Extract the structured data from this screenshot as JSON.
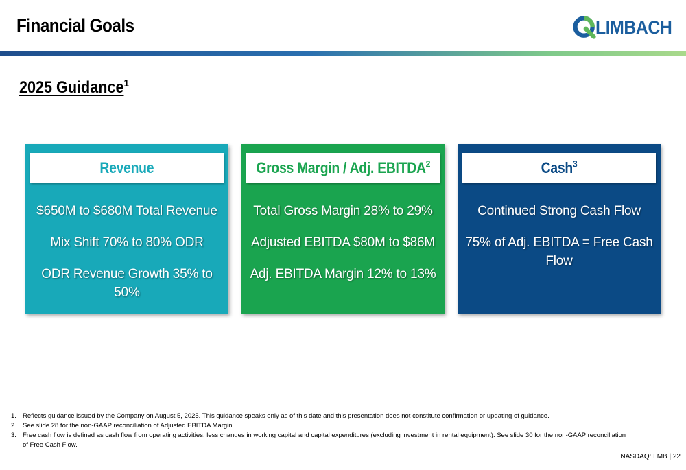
{
  "header": {
    "title": "Financial Goals",
    "logo_text": "LIMBACH",
    "logo_icon": "limbach-q-logo-icon",
    "bar_colors": [
      "#1f4e8c",
      "#2a6fb0",
      "#7ec98a",
      "#a9d98b"
    ]
  },
  "section": {
    "title": "2025 Guidance",
    "footnote_ref": "1"
  },
  "cards": [
    {
      "title": "Revenue",
      "footnote_ref": "",
      "color": "#18a9b9",
      "lines": [
        "$650M to $680M Total Revenue",
        "Mix Shift 70% to 80% ODR",
        "ODR Revenue Growth 35% to 50%"
      ]
    },
    {
      "title": "Gross Margin / Adj. EBITDA",
      "footnote_ref": "2",
      "color": "#1aa44f",
      "lines": [
        "Total Gross Margin 28% to 29%",
        "Adjusted EBITDA $80M to $86M",
        "Adj. EBITDA Margin 12% to 13%"
      ]
    },
    {
      "title": "Cash",
      "footnote_ref": "3",
      "color": "#0b4a85",
      "lines": [
        "Continued Strong Cash Flow",
        "75% of Adj. EBITDA = Free Cash Flow"
      ]
    }
  ],
  "footnotes": [
    {
      "num": "1.",
      "text": "Reflects guidance issued by the Company on August 5, 2025. This guidance speaks only as of this date and this presentation does not constitute confirmation or updating of guidance."
    },
    {
      "num": "2.",
      "text": "See slide 28 for the non-GAAP reconciliation of Adjusted EBITDA Margin."
    },
    {
      "num": "3.",
      "text": "Free cash flow is defined as cash flow from operating activities, less changes in working capital and capital expenditures (excluding investment in rental equipment). See slide 30 for the non-GAAP reconciliation of Free Cash Flow."
    }
  ],
  "footer": {
    "page_label": "NASDAQ: LMB | 22"
  }
}
